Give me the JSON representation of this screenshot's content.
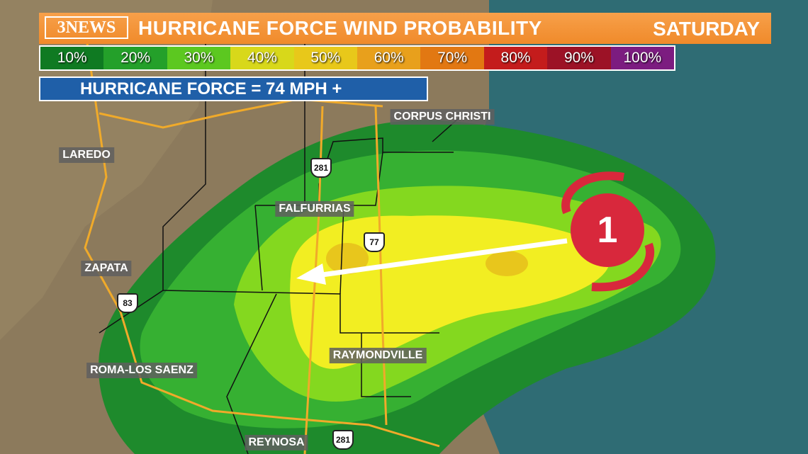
{
  "header": {
    "logo": "3NEWS",
    "title": "HURRICANE FORCE WIND PROBABILITY",
    "day": "SATURDAY"
  },
  "legend": {
    "items": [
      {
        "label": "10%",
        "color": "#0f7a22"
      },
      {
        "label": "20%",
        "color": "#24a02a"
      },
      {
        "label": "30%",
        "color": "#5cc820"
      },
      {
        "label": "40%",
        "color": "#d8d81a"
      },
      {
        "label": "50%",
        "color": "#e8c81a"
      },
      {
        "label": "60%",
        "color": "#e8a01c"
      },
      {
        "label": "70%",
        "color": "#e27812"
      },
      {
        "label": "80%",
        "color": "#c41c1c"
      },
      {
        "label": "90%",
        "color": "#9c1226"
      },
      {
        "label": "100%",
        "color": "#7c1c80"
      }
    ]
  },
  "definition": "HURRICANE FORCE =  74 MPH +",
  "cities": [
    "CORPUS CHRISTI",
    "LAREDO",
    "FALFURRIAS",
    "ZAPATA",
    "RAYMONDVILLE",
    "ROMA-LOS SAENZ",
    "REYNOSA"
  ],
  "highways": [
    "281",
    "77",
    "83",
    "281"
  ],
  "storm": {
    "category": "1"
  }
}
